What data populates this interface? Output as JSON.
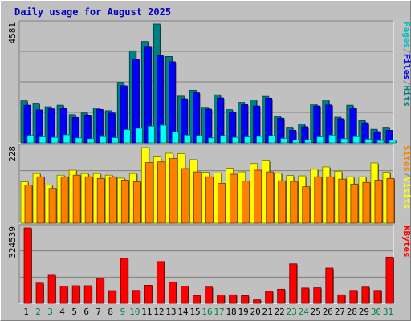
{
  "title": "Daily usage for August 2025",
  "chart_data": [
    {
      "type": "bar",
      "name_label": "pages-files-hits",
      "y_label": "4581",
      "ylim": [
        0,
        4581
      ],
      "series": [
        {
          "name": "Hits",
          "color": "#008080",
          "values": [
            1620,
            1530,
            1390,
            1450,
            1090,
            1150,
            1340,
            1240,
            2330,
            3550,
            3910,
            4581,
            3330,
            1800,
            2030,
            1370,
            1850,
            1280,
            1560,
            1660,
            1790,
            1020,
            600,
            720,
            1500,
            1650,
            990,
            1450,
            860,
            520,
            600
          ]
        },
        {
          "name": "Files",
          "color": "#0000ff",
          "values": [
            1450,
            1270,
            1310,
            1330,
            980,
            1070,
            1290,
            1150,
            2200,
            3230,
            3720,
            3360,
            3130,
            1700,
            1930,
            1300,
            1730,
            1180,
            1470,
            1420,
            1720,
            950,
            480,
            620,
            1420,
            1460,
            930,
            1350,
            770,
            430,
            480
          ]
        },
        {
          "name": "Pages",
          "color": "#00ffff",
          "values": [
            290,
            230,
            210,
            310,
            190,
            160,
            240,
            200,
            510,
            560,
            640,
            680,
            410,
            300,
            280,
            190,
            280,
            210,
            230,
            250,
            280,
            170,
            110,
            120,
            230,
            300,
            160,
            240,
            140,
            90,
            100
          ]
        }
      ],
      "legend": [
        "Pages",
        "/",
        "Files",
        "/",
        "Hits"
      ],
      "legend_colors": [
        "#00c0c0",
        "#808080",
        "#0000ff",
        "#808080",
        "#008080"
      ]
    },
    {
      "type": "bar",
      "name_label": "sites-visits",
      "y_label": "228",
      "ylim": [
        0,
        228
      ],
      "series": [
        {
          "name": "Visits",
          "color": "#ffff00",
          "values": [
            125,
            150,
            115,
            145,
            160,
            150,
            150,
            145,
            136,
            150,
            228,
            200,
            211,
            210,
            192,
            154,
            152,
            166,
            155,
            180,
            188,
            151,
            144,
            143,
            163,
            170,
            157,
            140,
            140,
            182,
            154
          ]
        },
        {
          "name": "Sites",
          "color": "#ff8000",
          "values": [
            115,
            140,
            105,
            140,
            145,
            140,
            135,
            140,
            130,
            125,
            183,
            185,
            195,
            165,
            155,
            140,
            120,
            148,
            127,
            160,
            155,
            128,
            126,
            110,
            140,
            140,
            133,
            118,
            123,
            130,
            135
          ]
        }
      ],
      "legend": [
        "Sites",
        "/",
        "Visits"
      ],
      "legend_colors": [
        "#ff8000",
        "#808080",
        "#ffff00"
      ]
    },
    {
      "type": "bar",
      "name_label": "kbytes",
      "y_label": "324539",
      "ylim": [
        0,
        324539
      ],
      "series": [
        {
          "name": "KBytes",
          "color": "#ff0000",
          "values": [
            324539,
            87000,
            121000,
            74000,
            76000,
            76000,
            108000,
            55000,
            194000,
            56000,
            78000,
            180000,
            92000,
            74000,
            34000,
            70000,
            36000,
            37000,
            33000,
            15000,
            52000,
            61000,
            170000,
            66000,
            67000,
            152000,
            37000,
            56000,
            70000,
            56000,
            199000
          ]
        }
      ],
      "legend": [
        "KBytes"
      ],
      "legend_colors": [
        "#ff0000"
      ]
    }
  ],
  "days": [
    "1",
    "2",
    "3",
    "4",
    "5",
    "6",
    "7",
    "8",
    "9",
    "10",
    "11",
    "12",
    "13",
    "14",
    "15",
    "16",
    "17",
    "18",
    "19",
    "20",
    "21",
    "22",
    "23",
    "24",
    "25",
    "26",
    "27",
    "28",
    "29",
    "30",
    "31"
  ],
  "weekend_days": [
    2,
    3,
    9,
    10,
    16,
    17,
    23,
    24,
    30,
    31
  ],
  "colors": {
    "title": "#0000c0",
    "panel_bg": "#c0c0c0",
    "grid": "#808080",
    "weekday_label": "#000000",
    "weekend_label": "#008040"
  }
}
